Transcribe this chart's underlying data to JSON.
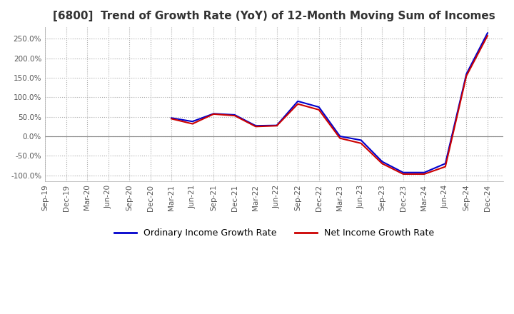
{
  "title": "[6800]  Trend of Growth Rate (YoY) of 12-Month Moving Sum of Incomes",
  "title_fontsize": 11,
  "legend_labels": [
    "Ordinary Income Growth Rate",
    "Net Income Growth Rate"
  ],
  "legend_colors": [
    "#0000cc",
    "#cc0000"
  ],
  "ylim": [
    -115,
    280
  ],
  "yticks": [
    -100,
    -50,
    0,
    50,
    100,
    150,
    200,
    250
  ],
  "background_color": "#ffffff",
  "grid_color": "#aaaaaa",
  "xtick_labels": [
    "Sep-19",
    "Dec-19",
    "Mar-20",
    "Jun-20",
    "Sep-20",
    "Dec-20",
    "Mar-21",
    "Jun-21",
    "Sep-21",
    "Dec-21",
    "Mar-22",
    "Jun-22",
    "Sep-22",
    "Dec-22",
    "Mar-23",
    "Jun-23",
    "Sep-23",
    "Dec-23",
    "Mar-24",
    "Jun-24",
    "Sep-24",
    "Dec-24"
  ],
  "ordinary_income": [
    null,
    null,
    null,
    null,
    null,
    null,
    47.0,
    38.0,
    58.0,
    55.0,
    27.0,
    28.0,
    90.0,
    75.0,
    0.0,
    -10.0,
    -65.0,
    -93.0,
    -93.0,
    -70.0,
    160.0,
    265.0
  ],
  "net_income": [
    null,
    null,
    null,
    null,
    null,
    null,
    45.0,
    32.0,
    57.0,
    53.0,
    25.0,
    27.0,
    83.0,
    68.0,
    -5.0,
    -18.0,
    -70.0,
    -97.0,
    -97.0,
    -78.0,
    155.0,
    258.0
  ]
}
